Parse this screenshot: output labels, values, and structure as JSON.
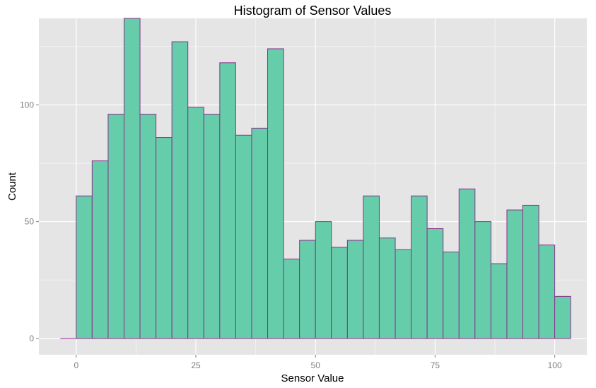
{
  "chart_data": {
    "type": "bar",
    "title": "Histogram of Sensor Values",
    "xlabel": "Sensor Value",
    "ylabel": "Count",
    "xlim": [
      -7.8,
      106.7
    ],
    "ylim": [
      -7,
      137
    ],
    "x_ticks": [
      0,
      25,
      50,
      75,
      100
    ],
    "y_ticks": [
      0,
      50,
      100
    ],
    "bin_width": 3.33,
    "bins": [
      {
        "x0": -3.33,
        "x1": 0.0,
        "count": 0
      },
      {
        "x0": 0.0,
        "x1": 3.33,
        "count": 61
      },
      {
        "x0": 3.33,
        "x1": 6.67,
        "count": 76
      },
      {
        "x0": 6.67,
        "x1": 10.0,
        "count": 96
      },
      {
        "x0": 10.0,
        "x1": 13.33,
        "count": 137
      },
      {
        "x0": 13.33,
        "x1": 16.67,
        "count": 96
      },
      {
        "x0": 16.67,
        "x1": 20.0,
        "count": 86
      },
      {
        "x0": 20.0,
        "x1": 23.33,
        "count": 127
      },
      {
        "x0": 23.33,
        "x1": 26.67,
        "count": 99
      },
      {
        "x0": 26.67,
        "x1": 30.0,
        "count": 96
      },
      {
        "x0": 30.0,
        "x1": 33.33,
        "count": 118
      },
      {
        "x0": 33.33,
        "x1": 36.67,
        "count": 87
      },
      {
        "x0": 36.67,
        "x1": 40.0,
        "count": 90
      },
      {
        "x0": 40.0,
        "x1": 43.33,
        "count": 124
      },
      {
        "x0": 43.33,
        "x1": 46.67,
        "count": 34
      },
      {
        "x0": 46.67,
        "x1": 50.0,
        "count": 42
      },
      {
        "x0": 50.0,
        "x1": 53.33,
        "count": 50
      },
      {
        "x0": 53.33,
        "x1": 56.67,
        "count": 39
      },
      {
        "x0": 56.67,
        "x1": 60.0,
        "count": 42
      },
      {
        "x0": 60.0,
        "x1": 63.33,
        "count": 61
      },
      {
        "x0": 63.33,
        "x1": 66.67,
        "count": 43
      },
      {
        "x0": 66.67,
        "x1": 70.0,
        "count": 38
      },
      {
        "x0": 70.0,
        "x1": 73.33,
        "count": 61
      },
      {
        "x0": 73.33,
        "x1": 76.67,
        "count": 47
      },
      {
        "x0": 76.67,
        "x1": 80.0,
        "count": 37
      },
      {
        "x0": 80.0,
        "x1": 83.33,
        "count": 64
      },
      {
        "x0": 83.33,
        "x1": 86.67,
        "count": 50
      },
      {
        "x0": 86.67,
        "x1": 90.0,
        "count": 32
      },
      {
        "x0": 90.0,
        "x1": 93.33,
        "count": 55
      },
      {
        "x0": 93.33,
        "x1": 96.67,
        "count": 57
      },
      {
        "x0": 96.67,
        "x1": 100.0,
        "count": 40
      },
      {
        "x0": 100.0,
        "x1": 103.33,
        "count": 18
      }
    ],
    "grid": true,
    "colors": {
      "panel_background": "#e5e5e5",
      "grid_major": "#ffffff",
      "grid_minor": "#f2f2f2",
      "bar_fill": "#66cdaa",
      "bar_outline": "#8b2f8b"
    }
  }
}
